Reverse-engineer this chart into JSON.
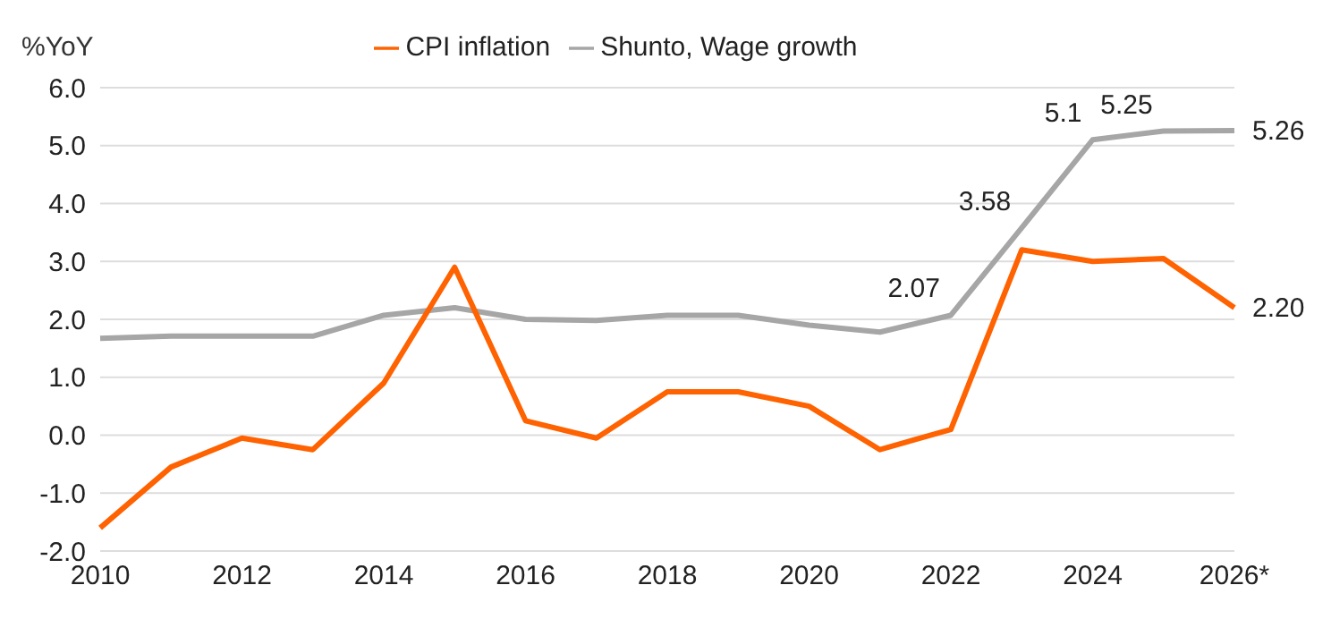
{
  "chart_data": {
    "type": "line",
    "ylabel": "%YoY",
    "categories": [
      "2010",
      null,
      "2012",
      null,
      "2014",
      null,
      "2016",
      null,
      "2018",
      null,
      "2020",
      null,
      "2022",
      null,
      "2024",
      null,
      "2026*"
    ],
    "series": [
      {
        "name": "Shunto, Wage growth",
        "color": "#a6a6a6",
        "values": [
          1.67,
          1.71,
          1.71,
          1.71,
          2.07,
          2.2,
          2.0,
          1.98,
          2.07,
          2.07,
          1.9,
          1.78,
          2.07,
          3.58,
          5.1,
          5.25,
          5.26
        ],
        "value_labels": [
          null,
          null,
          null,
          null,
          null,
          null,
          null,
          null,
          null,
          null,
          null,
          null,
          "2.07",
          "3.58",
          "5.1",
          "5.25",
          "5.26"
        ]
      },
      {
        "name": "CPI inflation",
        "color": "#ff6200",
        "values": [
          -1.6,
          -0.55,
          -0.05,
          -0.25,
          0.9,
          2.9,
          0.25,
          -0.05,
          0.75,
          0.75,
          0.5,
          -0.25,
          0.1,
          3.2,
          3.0,
          3.05,
          2.2
        ],
        "value_labels": [
          null,
          null,
          null,
          null,
          null,
          null,
          null,
          null,
          null,
          null,
          null,
          null,
          null,
          null,
          null,
          null,
          "2.20"
        ]
      }
    ],
    "ylim": [
      -2,
      6
    ],
    "yticks": [
      {
        "value": -2,
        "label": "-2.0"
      },
      {
        "value": -1,
        "label": "-1.0"
      },
      {
        "value": 0,
        "label": "0.0"
      },
      {
        "value": 1,
        "label": "1.0"
      },
      {
        "value": 2,
        "label": "2.0"
      },
      {
        "value": 3,
        "label": "3.0"
      },
      {
        "value": 4,
        "label": "4.0"
      },
      {
        "value": 5,
        "label": "5.0"
      },
      {
        "value": 6,
        "label": "6.0"
      }
    ],
    "grid": "y",
    "legend": "top",
    "marker": "none",
    "line_style": "solid"
  }
}
